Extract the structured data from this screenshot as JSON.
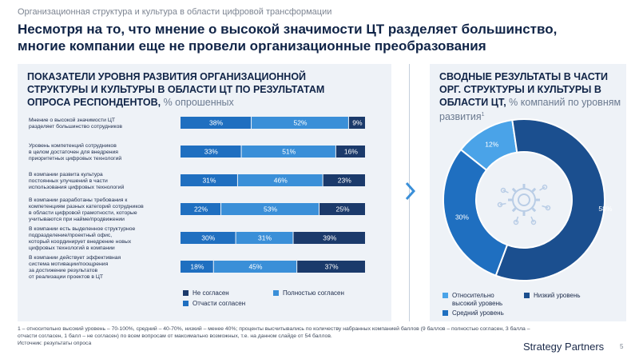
{
  "supertitle": "Организационная структура и культура в области цифровой трансформации",
  "headline": "Несмотря на то, что мнение о высокой значимости ЦТ разделяет большинство, многие компании еще не провели организационные преобразования",
  "left_panel": {
    "title": "ПОКАЗАТЕЛИ УРОВНЯ РАЗВИТИЯ ОРГАНИЗАЦИОННОЙ СТРУКТУРЫ И КУЛЬТУРЫ В ОБЛАСТИ ЦТ ПО РЕЗУЛЬТАТАМ ОПРОСА РЕСПОНДЕНТОВ,",
    "subtitle": "% опрошенных"
  },
  "right_panel": {
    "title": "СВОДНЫЕ РЕЗУЛЬТАТЫ В ЧАСТИ ОРГ. СТРУКТУРЫ И КУЛЬТУРЫ В ОБЛАСТИ ЦТ,",
    "subtitle": "% компаний по уровням развития",
    "superscript": "1"
  },
  "colors": {
    "disagree": "#1b3a6b",
    "partly": "#1f6fc0",
    "fully": "#3a8fd8",
    "high": "#4aa3e8",
    "medium": "#1f6fc0",
    "low": "#1b4f8f",
    "panel_bg": "#eef2f7"
  },
  "chart_data": [
    {
      "type": "bar",
      "orientation": "horizontal-stacked",
      "categories": [
        [
          "Мнение о высокой значимости ЦТ",
          "разделяет большинство сотрудников"
        ],
        [
          "Уровень компетенций сотрудников",
          "в целом достаточен для внедрения",
          "приоритетных цифровых технологий"
        ],
        [
          "В компании развита культура",
          "постоянных улучшений в части",
          "использования цифровых технологий"
        ],
        [
          "В компании разработаны требования к",
          "компетенциям разных категорий сотрудников",
          "в области цифровой грамотности, которые",
          "учитываются при найме/продвижении"
        ],
        [
          "В компании есть выделенное структурное",
          "подразделение/проектный офис,",
          "который координирует внедрение новых",
          "цифровых технологий в компании"
        ],
        [
          "В компании действует эффективная",
          "система мотивации/поощрения",
          "за достижение результатов",
          "от реализации проектов в ЦТ"
        ]
      ],
      "series": [
        {
          "key": "partly",
          "values": [
            38,
            33,
            31,
            22,
            30,
            18
          ]
        },
        {
          "key": "fully",
          "values": [
            52,
            51,
            46,
            53,
            31,
            45
          ]
        },
        {
          "key": "disagree",
          "values": [
            9,
            16,
            23,
            25,
            39,
            37
          ]
        }
      ],
      "value_labels": [
        [
          "38%",
          "52%",
          "9%"
        ],
        [
          "33%",
          "51%",
          "16%"
        ],
        [
          "31%",
          "46%",
          "23%"
        ],
        [
          "22%",
          "53%",
          "25%"
        ],
        [
          "30%",
          "31%",
          "39%"
        ],
        [
          "18%",
          "45%",
          "37%"
        ]
      ],
      "legend": [
        {
          "key": "disagree",
          "label": "Не согласен"
        },
        {
          "key": "fully",
          "label": "Полностью согласен"
        },
        {
          "key": "partly",
          "label": "Отчасти согласен"
        }
      ],
      "legend_position": "bottom"
    },
    {
      "type": "pie",
      "variant": "donut",
      "slices": [
        {
          "key": "high",
          "value": 12,
          "label": "12%"
        },
        {
          "key": "low",
          "value": 58,
          "label": "58%"
        },
        {
          "key": "medium",
          "value": 30,
          "label": "30%"
        }
      ],
      "legend": [
        {
          "key": "high",
          "label": "Относительно высокий уровень"
        },
        {
          "key": "low",
          "label": "Низкий уровень"
        },
        {
          "key": "medium",
          "label": "Средний уровень"
        }
      ],
      "center_icon": "digital-gear-icon",
      "legend_position": "bottom"
    }
  ],
  "footnote_lines": [
    "1 – относительно высокий уровень – 70-100%, средний – 40-70%, низкий – менее 40%; проценты высчитывались по количеству набранных компанией баллов (9 баллов – полностью согласен, 3 балла –",
    "отчасти согласен, 1 балл – не согласен) по всем вопросам от максимально возможных, т.е. на данном слайде от 54 баллов.",
    "Источник: результаты опроса"
  ],
  "brand": "Strategy Partners",
  "page_number": "5"
}
